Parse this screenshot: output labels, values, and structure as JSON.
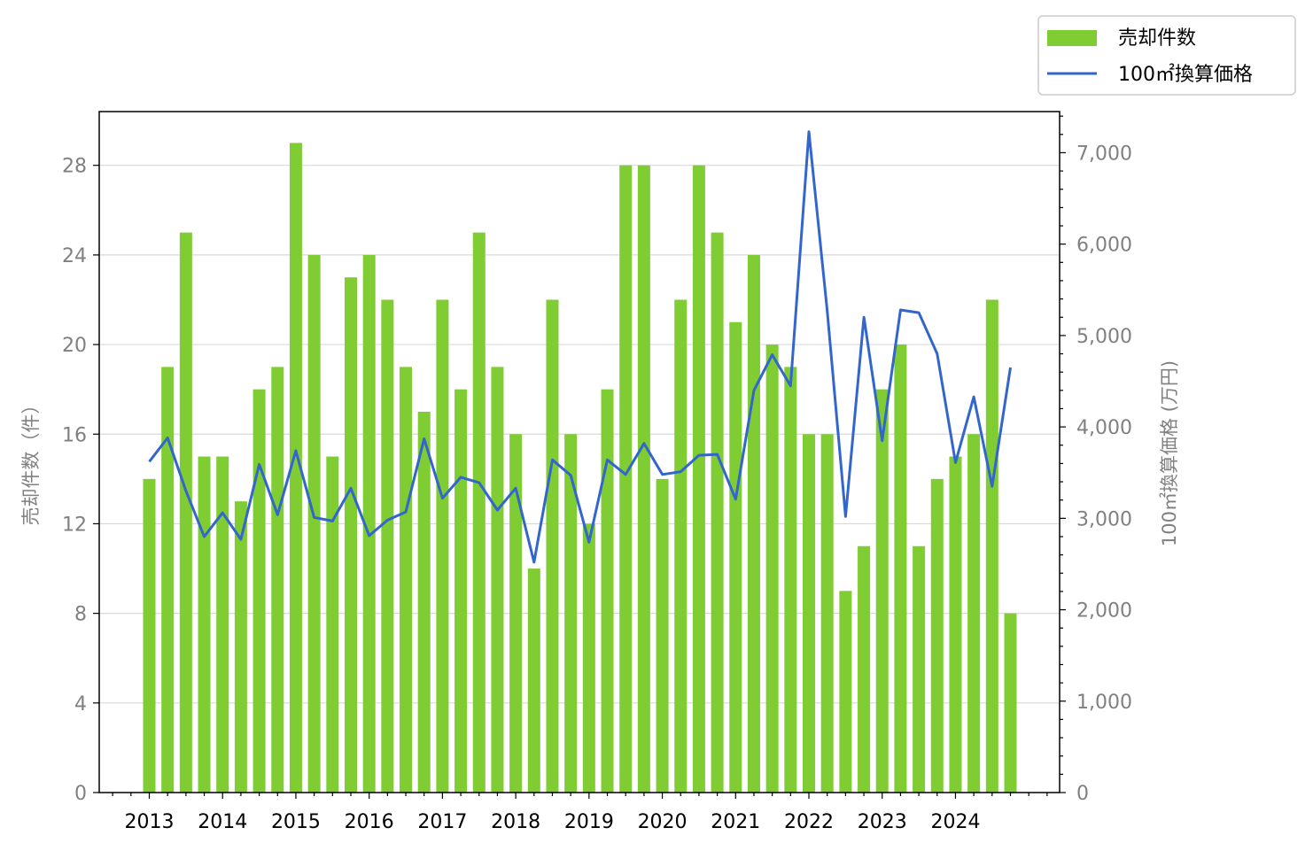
{
  "chart_data": {
    "type": "bar",
    "x_tick_labels": [
      "2013",
      "2014",
      "2015",
      "2016",
      "2017",
      "2018",
      "2019",
      "2020",
      "2021",
      "2022",
      "2023",
      "2024"
    ],
    "left_axis": {
      "label": "売却件数（件）",
      "ylim": [
        0,
        30.4
      ],
      "ticks": [
        0,
        4,
        8,
        12,
        16,
        20,
        24,
        28
      ]
    },
    "right_axis": {
      "label": "100㎡換算価格 (万円)",
      "ylim": [
        0,
        7450
      ],
      "ticks": [
        0,
        1000,
        2000,
        3000,
        4000,
        5000,
        6000,
        7000
      ],
      "tick_labels": [
        "0",
        "1,000",
        "2,000",
        "3,000",
        "4,000",
        "5,000",
        "6,000",
        "7,000"
      ]
    },
    "grid": "horizontal, left axis",
    "legend_position": "top-right, outside plot",
    "series": [
      {
        "name": "売却件数",
        "type": "bar",
        "axis": "left",
        "color": "#7fcc33",
        "values": [
          14,
          19,
          25,
          15,
          15,
          13,
          18,
          19,
          29,
          24,
          15,
          23,
          24,
          22,
          19,
          17,
          22,
          18,
          25,
          19,
          16,
          10,
          22,
          16,
          12,
          18,
          28,
          28,
          14,
          22,
          28,
          25,
          21,
          24,
          20,
          19,
          16,
          16,
          9,
          11,
          18,
          20,
          11,
          14,
          15,
          16,
          22,
          8
        ]
      },
      {
        "name": "100㎡換算価格",
        "type": "line",
        "axis": "right",
        "color": "#3366cc",
        "values": [
          3620,
          3880,
          3300,
          2800,
          3060,
          2770,
          3590,
          3040,
          3740,
          3010,
          2970,
          3330,
          2810,
          2980,
          3070,
          3870,
          3220,
          3450,
          3390,
          3090,
          3330,
          2520,
          3640,
          3470,
          2740,
          3640,
          3480,
          3820,
          3480,
          3510,
          3690,
          3700,
          3210,
          4400,
          4790,
          4450,
          7230,
          5270,
          3020,
          5200,
          3850,
          5280,
          5250,
          4800,
          3610,
          4330,
          3350,
          4650
        ]
      }
    ]
  }
}
